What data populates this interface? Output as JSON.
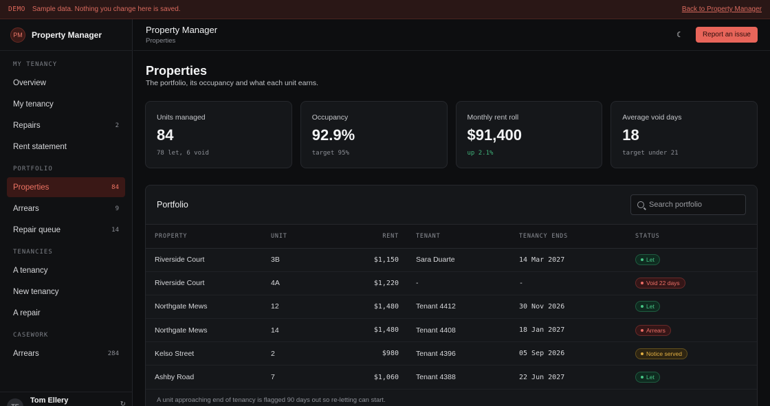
{
  "banner": {
    "tag": "DEMO",
    "message": "Sample data. Nothing you change here is saved.",
    "back_link": "Back to Property Manager"
  },
  "brand": {
    "initials": "PM",
    "name": "Property Manager"
  },
  "sidebar": {
    "sections": [
      {
        "label": "MY TENANCY",
        "items": [
          {
            "label": "Overview",
            "count": ""
          },
          {
            "label": "My tenancy",
            "count": ""
          },
          {
            "label": "Repairs",
            "count": "2"
          },
          {
            "label": "Rent statement",
            "count": ""
          }
        ]
      },
      {
        "label": "PORTFOLIO",
        "items": [
          {
            "label": "Properties",
            "count": "84",
            "active": true
          },
          {
            "label": "Arrears",
            "count": "9"
          },
          {
            "label": "Repair queue",
            "count": "14"
          }
        ]
      },
      {
        "label": "TENANCIES",
        "items": [
          {
            "label": "A tenancy",
            "count": ""
          },
          {
            "label": "New tenancy",
            "count": ""
          },
          {
            "label": "A repair",
            "count": ""
          }
        ]
      },
      {
        "label": "CASEWORK",
        "items": [
          {
            "label": "Arrears",
            "count": "284"
          }
        ]
      }
    ],
    "user": {
      "initials": "TE",
      "name": "Tom Ellery"
    }
  },
  "topbar": {
    "title": "Property Manager",
    "subtitle": "Properties",
    "report_button": "Report an issue"
  },
  "page": {
    "title": "Properties",
    "subtitle": "The portfolio, its occupancy and what each unit earns."
  },
  "stats": [
    {
      "label": "Units managed",
      "value": "84",
      "note": "78 let, 6 void",
      "tone": "muted"
    },
    {
      "label": "Occupancy",
      "value": "92.9%",
      "note": "target 95%",
      "tone": "muted"
    },
    {
      "label": "Monthly rent roll",
      "value": "$91,400",
      "note": "up 2.1%",
      "tone": "up"
    },
    {
      "label": "Average void days",
      "value": "18",
      "note": "target under 21",
      "tone": "muted"
    }
  ],
  "portfolio": {
    "title": "Portfolio",
    "search_placeholder": "Search portfolio",
    "columns": [
      "PROPERTY",
      "UNIT",
      "RENT",
      "TENANT",
      "TENANCY ENDS",
      "STATUS"
    ],
    "rows": [
      {
        "property": "Riverside Court",
        "unit": "3B",
        "rent": "$1,150",
        "tenant": "Sara Duarte",
        "ends": "14 Mar 2027",
        "status": "Let",
        "tone": "green"
      },
      {
        "property": "Riverside Court",
        "unit": "4A",
        "rent": "$1,220",
        "tenant": "-",
        "ends": "-",
        "status": "Void 22 days",
        "tone": "red"
      },
      {
        "property": "Northgate Mews",
        "unit": "12",
        "rent": "$1,480",
        "tenant": "Tenant 4412",
        "ends": "30 Nov 2026",
        "status": "Let",
        "tone": "green"
      },
      {
        "property": "Northgate Mews",
        "unit": "14",
        "rent": "$1,480",
        "tenant": "Tenant 4408",
        "ends": "18 Jan 2027",
        "status": "Arrears",
        "tone": "red"
      },
      {
        "property": "Kelso Street",
        "unit": "2",
        "rent": "$980",
        "tenant": "Tenant 4396",
        "ends": "05 Sep 2026",
        "status": "Notice served",
        "tone": "amber"
      },
      {
        "property": "Ashby Road",
        "unit": "7",
        "rent": "$1,060",
        "tenant": "Tenant 4388",
        "ends": "22 Jun 2027",
        "status": "Let",
        "tone": "green"
      }
    ],
    "footnote": "A unit approaching end of tenancy is flagged 90 days out so re-letting can start."
  }
}
